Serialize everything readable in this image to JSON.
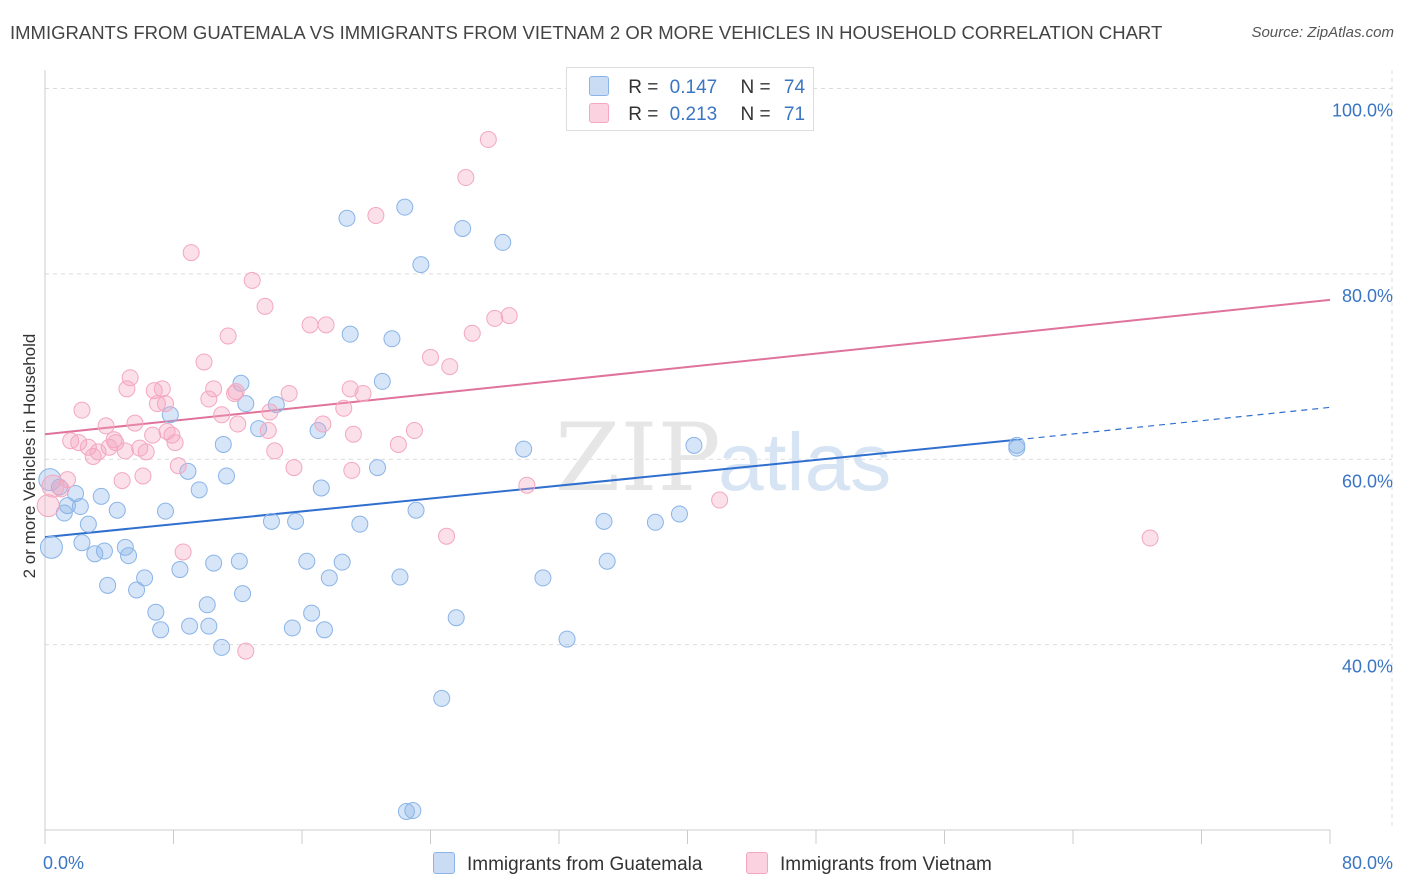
{
  "title": "IMMIGRANTS FROM GUATEMALA VS IMMIGRANTS FROM VIETNAM 2 OR MORE VEHICLES IN HOUSEHOLD CORRELATION CHART",
  "source": "Source: ZipAtlas.com",
  "watermark": {
    "zip": "ZIP",
    "atlas": "atlas"
  },
  "legend": {
    "rows": [
      {
        "r_label": "R =",
        "r_value": "0.147",
        "n_label": "N =",
        "n_value": "74"
      },
      {
        "r_label": "R =",
        "r_value": "0.213",
        "n_label": "N =",
        "n_value": "71"
      }
    ]
  },
  "chart_data": {
    "type": "scatter",
    "title": "IMMIGRANTS FROM GUATEMALA VS IMMIGRANTS FROM VIETNAM 2 OR MORE VEHICLES IN HOUSEHOLD CORRELATION CHART",
    "xlabel": "",
    "ylabel": "2 or more Vehicles in Household",
    "xlim": [
      0,
      80
    ],
    "ylim": [
      20,
      102
    ],
    "x_tick_labels": [
      "0.0%",
      "80.0%"
    ],
    "y_ticks": [
      100,
      80,
      60,
      40
    ],
    "y_tick_labels": [
      "100.0%",
      "80.0%",
      "60.0%",
      "40.0%"
    ],
    "grid": true,
    "legend_position": "top-center",
    "colors": {
      "guatemala": "#8ab4e8",
      "vietnam": "#f4a7bf",
      "guatemala_line": "#2f6fcf",
      "vietnam_line": "#e0739b"
    },
    "series": [
      {
        "name": "Immigrants from Guatemala",
        "r": 0.147,
        "n": 74,
        "trend": {
          "x": [
            0,
            60.5
          ],
          "y": [
            51.6,
            62.1
          ],
          "dashed_to": [
            80,
            65.6
          ]
        },
        "x": [
          0.3,
          0.4,
          0.9,
          1.2,
          1.4,
          1.9,
          2.2,
          2.3,
          2.7,
          3.1,
          3.5,
          3.7,
          3.9,
          4.5,
          5.0,
          5.2,
          5.7,
          6.2,
          6.9,
          7.2,
          7.5,
          7.8,
          8.4,
          8.9,
          9.0,
          9.6,
          10.1,
          10.2,
          10.5,
          11.0,
          11.1,
          11.3,
          12.1,
          12.2,
          12.3,
          12.5,
          13.3,
          14.1,
          14.4,
          15.4,
          15.6,
          16.3,
          16.6,
          17.0,
          17.2,
          17.4,
          17.7,
          18.5,
          18.8,
          19.0,
          19.6,
          20.7,
          21.0,
          21.6,
          22.1,
          22.4,
          22.5,
          22.9,
          23.1,
          23.4,
          24.7,
          25.6,
          26.0,
          28.5,
          29.8,
          31.0,
          32.5,
          34.8,
          35.0,
          38.0,
          39.5,
          40.4,
          60.5,
          60.5
        ],
        "y": [
          57.8,
          50.5,
          57.0,
          54.2,
          55.0,
          56.3,
          54.9,
          51.0,
          53.0,
          49.8,
          56.0,
          50.1,
          46.4,
          54.5,
          50.5,
          49.6,
          45.9,
          47.2,
          43.5,
          41.6,
          54.4,
          64.8,
          48.1,
          58.7,
          42.0,
          56.7,
          44.3,
          42.0,
          48.8,
          39.7,
          61.6,
          58.2,
          49.0,
          68.2,
          45.5,
          66.0,
          63.3,
          53.3,
          65.9,
          41.8,
          53.3,
          49.0,
          43.4,
          63.1,
          56.9,
          41.6,
          47.2,
          48.9,
          86.0,
          73.5,
          53.0,
          59.1,
          68.4,
          73.0,
          47.3,
          87.2,
          22.0,
          22.1,
          54.5,
          81.0,
          34.2,
          42.9,
          84.9,
          83.4,
          61.1,
          47.2,
          40.6,
          53.3,
          49.0,
          53.2,
          54.1,
          61.5,
          61.5,
          61.2
        ]
      },
      {
        "name": "Immigrants from Vietnam",
        "r": 0.213,
        "n": 71,
        "trend": {
          "x": [
            0,
            80
          ],
          "y": [
            62.7,
            77.2
          ]
        },
        "x": [
          0.2,
          0.5,
          1.0,
          1.4,
          1.6,
          2.1,
          2.3,
          2.7,
          3.0,
          3.3,
          3.8,
          4.0,
          4.3,
          4.4,
          4.8,
          5.0,
          5.1,
          5.3,
          5.6,
          5.9,
          6.1,
          6.3,
          6.7,
          6.8,
          7.0,
          7.3,
          7.5,
          7.6,
          7.9,
          8.1,
          8.3,
          8.6,
          9.1,
          9.9,
          10.2,
          10.5,
          11.0,
          11.4,
          11.8,
          11.9,
          12.0,
          12.5,
          12.9,
          13.7,
          13.9,
          14.0,
          14.3,
          15.2,
          15.5,
          16.5,
          17.3,
          17.5,
          18.6,
          19.0,
          19.1,
          19.2,
          19.8,
          20.6,
          22.0,
          23.0,
          24.0,
          25.0,
          25.2,
          26.2,
          26.6,
          27.6,
          28.0,
          28.9,
          30.0,
          42.0,
          68.8
        ],
        "y": [
          55.0,
          57.1,
          56.8,
          57.8,
          62.0,
          61.8,
          65.3,
          61.3,
          60.3,
          60.8,
          63.6,
          61.3,
          62.1,
          61.8,
          57.7,
          60.9,
          67.6,
          68.8,
          63.9,
          61.2,
          58.2,
          60.8,
          62.6,
          67.4,
          66.0,
          67.6,
          66.0,
          63.0,
          62.6,
          61.8,
          59.3,
          50.0,
          82.3,
          70.5,
          66.5,
          67.6,
          64.8,
          73.3,
          67.1,
          67.3,
          63.8,
          39.3,
          79.3,
          76.5,
          63.1,
          65.1,
          60.9,
          67.1,
          59.1,
          74.5,
          63.8,
          74.5,
          65.5,
          67.6,
          58.8,
          62.7,
          67.1,
          86.3,
          61.6,
          63.1,
          71.0,
          51.7,
          70.0,
          90.4,
          73.6,
          94.5,
          75.2,
          75.5,
          57.2,
          55.6,
          51.5
        ]
      }
    ]
  }
}
